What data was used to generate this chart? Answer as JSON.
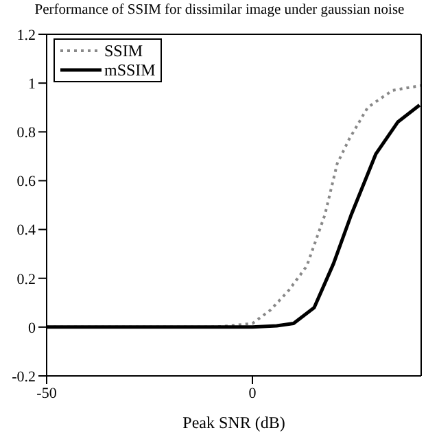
{
  "chart_data": {
    "type": "line",
    "title": "Performance of SSIM for dissimilar image under gaussian noise",
    "xlabel": "Peak SNR (dB)",
    "xlim": [
      -50,
      41
    ],
    "xticks": [
      -50,
      0
    ],
    "ylim": [
      -0.2,
      1.2
    ],
    "yticks": [
      -0.2,
      0,
      0.2,
      0.4,
      0.6,
      0.8,
      1,
      1.2
    ],
    "grid": false,
    "legend": "top left",
    "marker": "none",
    "series": [
      {
        "name": "SSIM",
        "color": "#888888",
        "line_style": "dotted",
        "x": [
          -50,
          -10,
          -7,
          0,
          4.4,
          8.8,
          13.2,
          17.6,
          20.6,
          23.5,
          28,
          34,
          41
        ],
        "values": [
          0,
          0,
          0.003,
          0.015,
          0.07,
          0.15,
          0.25,
          0.46,
          0.67,
          0.77,
          0.9,
          0.97,
          0.99
        ]
      },
      {
        "name": "mSSIM",
        "color": "#000000",
        "line_style": "solid",
        "x": [
          -50,
          0,
          5.9,
          10,
          15,
          19.7,
          24,
          30,
          35.3,
          40.6
        ],
        "values": [
          0,
          0,
          0.005,
          0.015,
          0.08,
          0.26,
          0.46,
          0.71,
          0.84,
          0.91
        ]
      }
    ]
  }
}
